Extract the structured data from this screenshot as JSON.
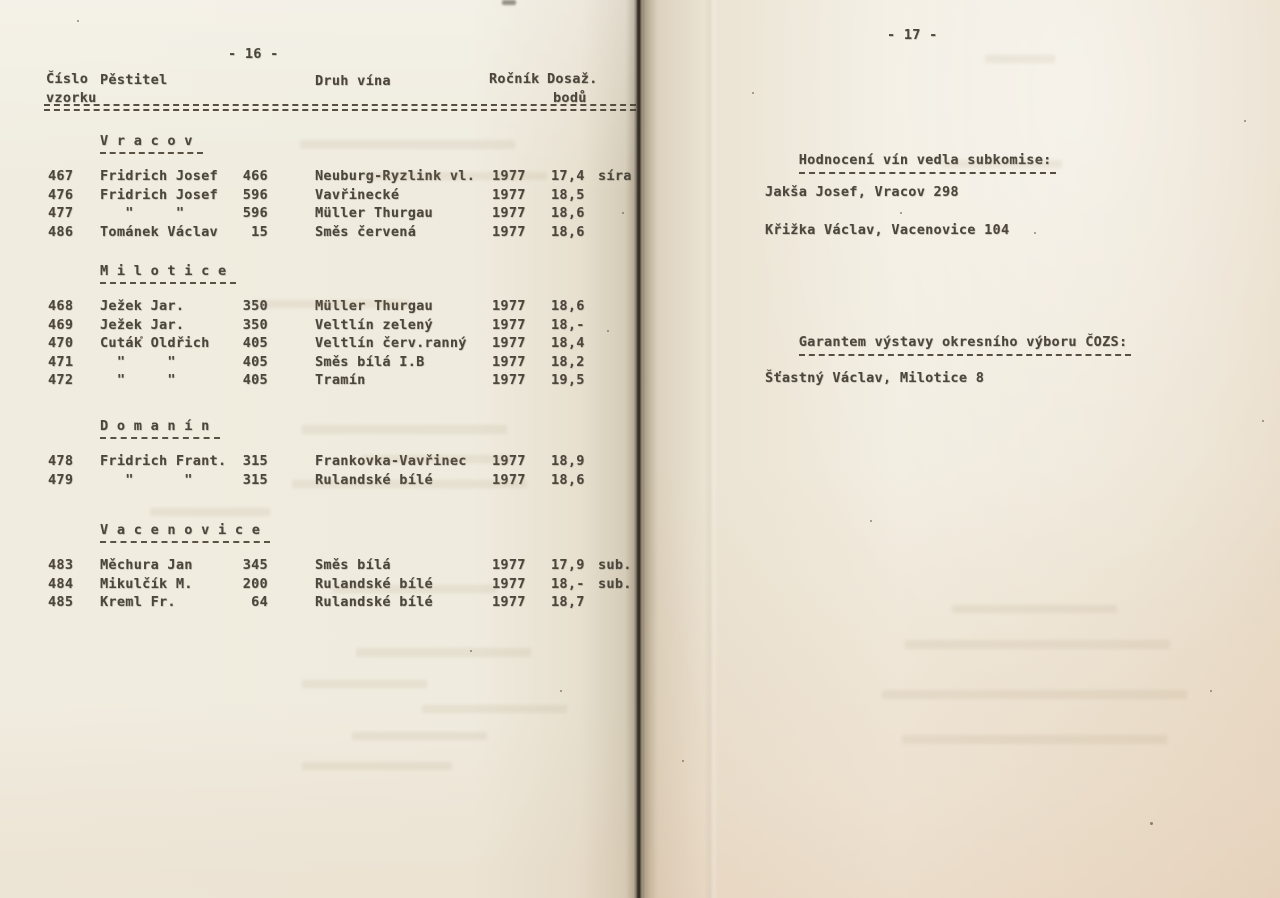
{
  "left_page": {
    "page_number": "- 16 -",
    "table_header": {
      "col_sample_line1": "Číslo",
      "col_sample_line2": "vzorku",
      "col_grower": "Pěstitel",
      "col_wine": "Druh vína",
      "col_year": "Ročník",
      "col_points_line1": "Dosaž.",
      "col_points_line2": "bodů"
    },
    "sections": [
      {
        "name": "Vracov",
        "display": "V r a c o v",
        "rows": [
          {
            "no": "467",
            "grower": "Fridrich Josef",
            "house": "466",
            "wine": "Neuburg-Ryzlink vl.",
            "year": "1977",
            "points": "17,4",
            "note": "síra"
          },
          {
            "no": "476",
            "grower": "Fridrich Josef",
            "house": "596",
            "wine": "Vavřinecké",
            "year": "1977",
            "points": "18,5",
            "note": ""
          },
          {
            "no": "477",
            "grower": "   \"     \"",
            "house": "596",
            "wine": "Müller Thurgau",
            "year": "1977",
            "points": "18,6",
            "note": ""
          },
          {
            "no": "486",
            "grower": "Tománek Václav",
            "house": "15",
            "wine": "Směs červená",
            "year": "1977",
            "points": "18,6",
            "note": ""
          }
        ]
      },
      {
        "name": "Milotice",
        "display": "M i l o t i c e",
        "rows": [
          {
            "no": "468",
            "grower": "Ježek Jar.",
            "house": "350",
            "wine": "Müller Thurgau",
            "year": "1977",
            "points": "18,6",
            "note": ""
          },
          {
            "no": "469",
            "grower": "Ježek Jar.",
            "house": "350",
            "wine": "Veltlín zelený",
            "year": "1977",
            "points": "18,-",
            "note": ""
          },
          {
            "no": "470",
            "grower": "Cuták Oldřich",
            "house": "405",
            "wine": "Veltlín červ.ranný",
            "year": "1977",
            "points": "18,4",
            "note": ""
          },
          {
            "no": "471",
            "grower": "  \"     \"",
            "house": "405",
            "wine": "Směs bílá I.B",
            "year": "1977",
            "points": "18,2",
            "note": ""
          },
          {
            "no": "472",
            "grower": "  \"     \"",
            "house": "405",
            "wine": "Tramín",
            "year": "1977",
            "points": "19,5",
            "note": ""
          }
        ]
      },
      {
        "name": "Domanín",
        "display": "D o m a n í n",
        "rows": [
          {
            "no": "478",
            "grower": "Fridrich Frant.",
            "house": "315",
            "wine": "Frankovka-Vavřinec",
            "year": "1977",
            "points": "18,9",
            "note": ""
          },
          {
            "no": "479",
            "grower": "   \"      \"",
            "house": "315",
            "wine": "Rulandské bílé",
            "year": "1977",
            "points": "18,6",
            "note": ""
          }
        ]
      },
      {
        "name": "Vacenovice",
        "display": "V a c e n o v i c e",
        "rows": [
          {
            "no": "483",
            "grower": "Měchura Jan",
            "house": "345",
            "wine": "Směs bílá",
            "year": "1977",
            "points": "17,9",
            "note": "sub."
          },
          {
            "no": "484",
            "grower": "Mikulčík M.",
            "house": "200",
            "wine": "Rulandské bílé",
            "year": "1977",
            "points": "18,-",
            "note": "sub."
          },
          {
            "no": "485",
            "grower": "Kreml Fr.",
            "house": "64",
            "wine": "Rulandské bílé",
            "year": "1977",
            "points": "18,7",
            "note": ""
          }
        ]
      }
    ]
  },
  "right_page": {
    "page_number": "- 17 -",
    "subcommittee_heading": "Hodnocení vín vedla subkomise:",
    "jury": [
      "Jakša Josef, Vracov 298",
      "Křižka Václav, Vacenovice 104"
    ],
    "guarantor_heading": "Garantem výstavy okresního výboru ČOZS:",
    "guarantor": "Šťastný Václav, Milotice 8"
  }
}
